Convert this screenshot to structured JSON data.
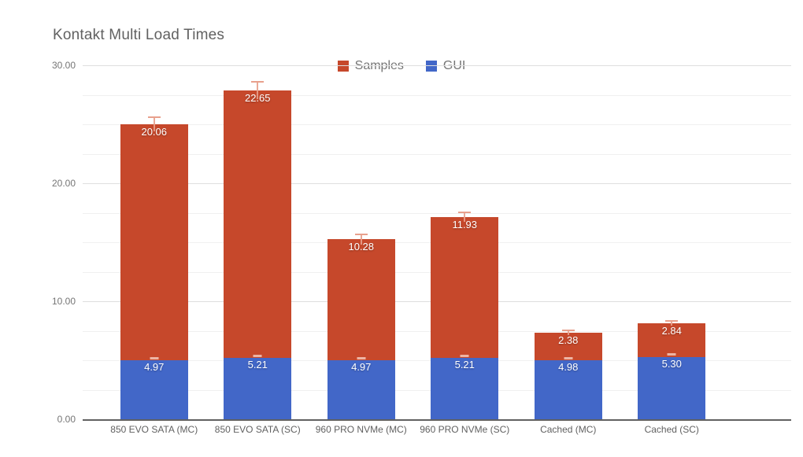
{
  "title": "Kontakt Multi Load Times",
  "legend": {
    "items": [
      {
        "label": "Samples",
        "color": "#C6482B"
      },
      {
        "label": "GUI",
        "color": "#4267C8"
      }
    ]
  },
  "colors": {
    "samples_bar": "#C6482B",
    "gui_bar": "#4267C8",
    "samples_whisker": "#E8A08C",
    "gui_whisker": "#F3C8BA",
    "value_label": "#FFFFFF",
    "axis_line": "#616161"
  },
  "chart_data": {
    "type": "bar",
    "stacked": true,
    "title": "Kontakt Multi Load Times",
    "categories": [
      "850 EVO SATA (MC)",
      "850 EVO SATA (SC)",
      "960 PRO NVMe (MC)",
      "960 PRO NVMe (SC)",
      "Cached (MC)",
      "Cached (SC)"
    ],
    "series": [
      {
        "name": "Samples",
        "color": "#C6482B",
        "values": [
          20.06,
          22.65,
          10.28,
          11.93,
          2.38,
          2.84
        ],
        "labels": [
          "20.06",
          "22.65",
          "10.28",
          "11.93",
          "2.38",
          "2.84"
        ],
        "error_extents": [
          0.6,
          0.75,
          0.45,
          0.4,
          0.2,
          0.2
        ]
      },
      {
        "name": "GUI",
        "color": "#4267C8",
        "values": [
          4.97,
          5.21,
          4.97,
          5.21,
          4.98,
          5.3
        ],
        "labels": [
          "4.97",
          "5.21",
          "4.97",
          "5.21",
          "4.98",
          "5.30"
        ],
        "error_extents": [
          0.15,
          0.15,
          0.15,
          0.15,
          0.15,
          0.15
        ]
      }
    ],
    "stack_totals": [
      25.03,
      27.86,
      15.25,
      17.14,
      7.36,
      8.14
    ],
    "xlabel": "",
    "ylabel": "",
    "ylim": [
      0,
      30
    ],
    "y_major_step": 10,
    "y_minor_step": 2.5,
    "y_tick_labels": [
      "0.00",
      "10.00",
      "20.00",
      "30.00"
    ],
    "grid": true,
    "legend_position": "top-center",
    "value_labels_visible": true
  }
}
